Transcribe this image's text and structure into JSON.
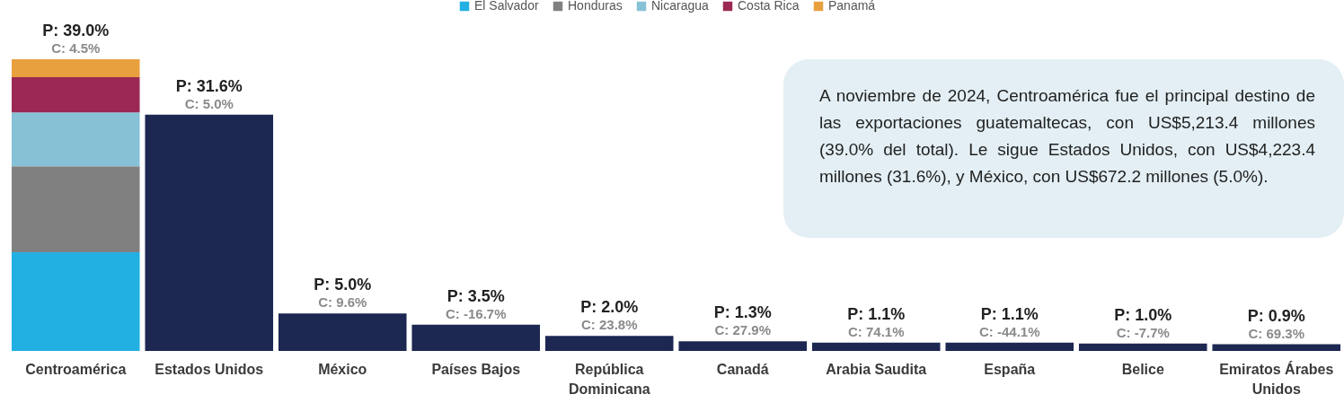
{
  "chart_data": {
    "type": "bar",
    "stacked": true,
    "legend": "top",
    "tick_labels": "x",
    "categories": [
      "Centroamérica",
      "Estados Unidos",
      "México",
      "Países Bajos",
      "República Dominicana",
      "Canadá",
      "Arabia Saudita",
      "España",
      "Belice",
      "Emiratos Árabes Unidos"
    ],
    "series": [
      {
        "name": "El Salvador",
        "color": "#22b0e2",
        "values": [
          13.2,
          null,
          null,
          null,
          null,
          null,
          null,
          null,
          null,
          null
        ]
      },
      {
        "name": "Honduras",
        "color": "#808080",
        "values": [
          11.5,
          null,
          null,
          null,
          null,
          null,
          null,
          null,
          null,
          null
        ]
      },
      {
        "name": "Nicaragua",
        "color": "#87c1d6",
        "values": [
          7.2,
          null,
          null,
          null,
          null,
          null,
          null,
          null,
          null,
          null
        ]
      },
      {
        "name": "Costa Rica",
        "color": "#9b2954",
        "values": [
          4.7,
          null,
          null,
          null,
          null,
          null,
          null,
          null,
          null,
          null
        ]
      },
      {
        "name": "Panamá",
        "color": "#e8a03f",
        "values": [
          2.4,
          null,
          null,
          null,
          null,
          null,
          null,
          null,
          null,
          null
        ]
      },
      {
        "color": "#1c2752",
        "values": [
          null,
          31.6,
          5.0,
          3.5,
          2.0,
          1.3,
          1.1,
          1.1,
          1.0,
          0.9
        ],
        "value_labels": [
          null,
          "P: 31.6%",
          "P: 5.0%",
          "P: 3.5%",
          "P: 2.0%",
          "P: 1.3%",
          "P: 1.1%",
          "P: 1.1%",
          "P: 1.0%",
          "P: 0.9%"
        ]
      }
    ],
    "totals": [
      "P: 39.0%",
      null,
      null,
      null,
      null,
      null,
      null,
      null,
      null,
      null
    ],
    "annotations": [
      {
        "text": "C: 4.5%",
        "x": "Centroamérica",
        "y": 39.0
      },
      {
        "text": "C: 5.0%",
        "x": "Estados Unidos",
        "y": 31.6
      },
      {
        "text": "C: 9.6%",
        "x": "México",
        "y": 5.0
      },
      {
        "text": "C: -16.7%",
        "x": "Países Bajos",
        "y": 3.5
      },
      {
        "text": "C: 23.8%",
        "x": "República Dominicana",
        "y": 2.0
      },
      {
        "text": "C: 27.9%",
        "x": "Canadá",
        "y": 1.3
      },
      {
        "text": "C: 74.1%",
        "x": "Arabia Saudita",
        "y": 1.1
      },
      {
        "text": "C: -44.1%",
        "x": "España",
        "y": 1.1
      },
      {
        "text": "C: -7.7%",
        "x": "Belice",
        "y": 1.0
      },
      {
        "text": "C: 69.3%",
        "x": "Emiratos Árabes Unidos",
        "y": 0.9
      },
      "A noviembre de 2024, Centroamérica fue el principal destino de las exportaciones guatemaltecas, con US$5,213.4 millones (39.0% del total). Le sigue Estados Unidos, con US$4,223.4 millones (31.6%), y México, con US$672.2 millones (5.0%)."
    ]
  }
}
